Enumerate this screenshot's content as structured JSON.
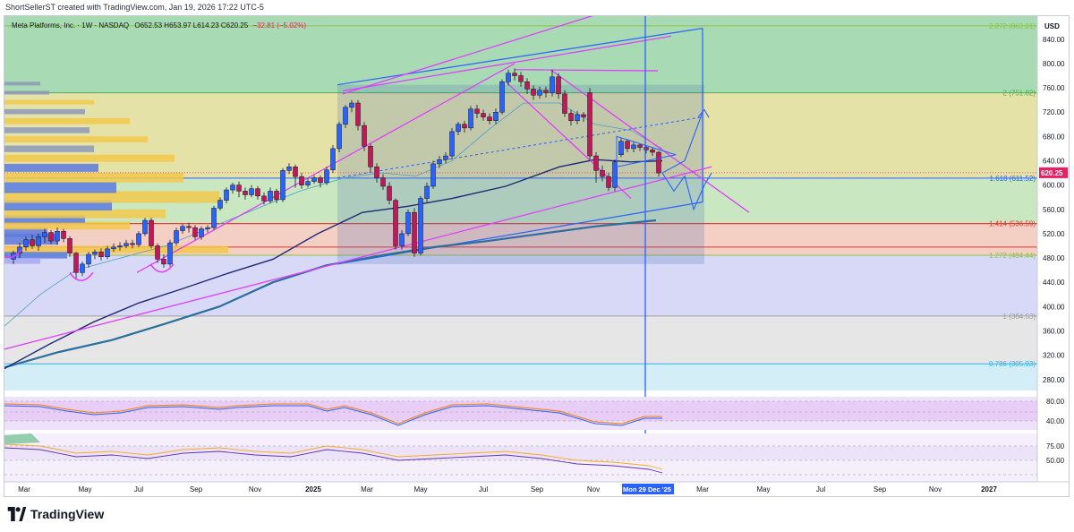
{
  "header": {
    "credit": "ShortSellerST created with TradingView.com, Jan 19, 2026 17:22 UTC-5",
    "symbol_line": "Meta Platforms, Inc. · 1W · NASDAQ",
    "ohlc": "O652.53 H653.97 L614.23 C620.25",
    "change": "−32.81 (−5.02%)"
  },
  "price_axis": {
    "currency": "USD",
    "current_price": "620.25",
    "ticks": [
      "840.00",
      "800.00",
      "760.00",
      "720.00",
      "680.00",
      "640.00",
      "600.00",
      "560.00",
      "520.00",
      "480.00",
      "440.00",
      "400.00",
      "360.00",
      "320.00",
      "280.00"
    ]
  },
  "fib_labels": [
    {
      "label": "2.272 (862.01)",
      "price": 862
    },
    {
      "label": "2 (751.82)",
      "price": 751.82
    },
    {
      "label": "1.618 (611.52)",
      "price": 611.52
    },
    {
      "label": "1.414 (536.59)",
      "price": 536.59
    },
    {
      "label": "1.272 (484.44)",
      "price": 484.44
    },
    {
      "label": "1 (384.53)",
      "price": 384.53
    },
    {
      "label": "0.786 (305.93)",
      "price": 305.93
    }
  ],
  "time_axis": {
    "ticks": [
      "Mar",
      "May",
      "Jul",
      "Sep",
      "Nov",
      "2025",
      "Mar",
      "May",
      "Jul",
      "Sep",
      "Nov",
      "Mon 29 Dec '25",
      "Mar",
      "May",
      "Jul",
      "Sep",
      "Nov",
      "2027"
    ],
    "cursor_label": "Mon 29 Dec '25"
  },
  "osc1_axis": [
    "80.00",
    "40.00"
  ],
  "osc2_axis": [
    "75.00",
    "50.00"
  ],
  "brand": "TradingView",
  "colors": {
    "up": "#2962ff",
    "down": "#c2185b",
    "trend": "#e040fb",
    "channel": "#2962ff",
    "ma_long": "#1e2a78",
    "ma_200": "#2b6f9e"
  },
  "chart_data": {
    "type": "candlestick",
    "interval": "1W",
    "symbol": "META",
    "ylim": [
      262,
      878
    ],
    "current_price": 620.25,
    "last_bar": {
      "open": 652.53,
      "high": 653.97,
      "low": 614.23,
      "close": 620.25
    },
    "candles_by_x_pos": [
      [
        10,
        478,
        488,
        470,
        492
      ],
      [
        17,
        488,
        498,
        480,
        505
      ],
      [
        24,
        498,
        510,
        492,
        515
      ],
      [
        31,
        510,
        500,
        495,
        518
      ],
      [
        38,
        500,
        515,
        492,
        520
      ],
      [
        45,
        515,
        522,
        505,
        528
      ],
      [
        52,
        522,
        508,
        503,
        526
      ],
      [
        59,
        508,
        524,
        502,
        530
      ],
      [
        66,
        524,
        512,
        506,
        528
      ],
      [
        73,
        512,
        488,
        482,
        516
      ],
      [
        80,
        488,
        456,
        444,
        490
      ],
      [
        87,
        456,
        470,
        450,
        474
      ],
      [
        94,
        470,
        486,
        464,
        490
      ],
      [
        101,
        486,
        490,
        478,
        494
      ],
      [
        108,
        490,
        482,
        476,
        496
      ],
      [
        115,
        482,
        495,
        478,
        500
      ],
      [
        122,
        495,
        498,
        490,
        504
      ],
      [
        129,
        498,
        500,
        492,
        506
      ],
      [
        136,
        500,
        504,
        496,
        510
      ],
      [
        143,
        504,
        502,
        496,
        510
      ],
      [
        150,
        502,
        520,
        498,
        524
      ],
      [
        157,
        520,
        542,
        516,
        546
      ],
      [
        164,
        542,
        500,
        496,
        546
      ],
      [
        171,
        500,
        478,
        472,
        504
      ],
      [
        178,
        478,
        470,
        464,
        486
      ],
      [
        185,
        470,
        505,
        466,
        510
      ],
      [
        192,
        505,
        525,
        500,
        530
      ],
      [
        199,
        525,
        532,
        520,
        536
      ],
      [
        206,
        532,
        530,
        522,
        538
      ],
      [
        213,
        530,
        515,
        510,
        534
      ],
      [
        220,
        515,
        528,
        510,
        532
      ],
      [
        227,
        528,
        530,
        522,
        534
      ],
      [
        234,
        530,
        562,
        526,
        566
      ],
      [
        241,
        562,
        575,
        558,
        580
      ],
      [
        248,
        575,
        592,
        570,
        596
      ],
      [
        255,
        592,
        600,
        586,
        604
      ],
      [
        262,
        600,
        590,
        580,
        606
      ],
      [
        269,
        590,
        584,
        576,
        596
      ],
      [
        276,
        584,
        594,
        580,
        600
      ],
      [
        283,
        594,
        582,
        576,
        598
      ],
      [
        290,
        582,
        574,
        568,
        588
      ],
      [
        297,
        574,
        590,
        570,
        596
      ],
      [
        304,
        590,
        576,
        570,
        594
      ],
      [
        311,
        576,
        624,
        572,
        628
      ],
      [
        318,
        624,
        630,
        618,
        636
      ],
      [
        325,
        630,
        614,
        596,
        634
      ],
      [
        332,
        614,
        600,
        594,
        620
      ],
      [
        339,
        600,
        606,
        596,
        612
      ],
      [
        346,
        606,
        612,
        602,
        616
      ],
      [
        353,
        612,
        604,
        596,
        616
      ],
      [
        360,
        604,
        625,
        600,
        630
      ],
      [
        367,
        625,
        660,
        620,
        666
      ],
      [
        374,
        660,
        700,
        654,
        704
      ],
      [
        381,
        700,
        728,
        694,
        732
      ],
      [
        388,
        728,
        735,
        720,
        740
      ],
      [
        395,
        735,
        698,
        690,
        740
      ],
      [
        402,
        698,
        664,
        656,
        704
      ],
      [
        409,
        664,
        630,
        622,
        668
      ],
      [
        416,
        630,
        612,
        604,
        636
      ],
      [
        423,
        612,
        598,
        592,
        618
      ],
      [
        430,
        598,
        575,
        568,
        605
      ],
      [
        437,
        575,
        500,
        494,
        578
      ],
      [
        444,
        500,
        520,
        494,
        526
      ],
      [
        451,
        520,
        555,
        516,
        560
      ],
      [
        458,
        555,
        488,
        482,
        562
      ],
      [
        465,
        488,
        578,
        484,
        582
      ],
      [
        472,
        578,
        598,
        572,
        604
      ],
      [
        479,
        598,
        635,
        594,
        640
      ],
      [
        486,
        635,
        642,
        628,
        648
      ],
      [
        493,
        642,
        648,
        636,
        654
      ],
      [
        500,
        648,
        688,
        642,
        694
      ],
      [
        507,
        688,
        700,
        682,
        704
      ],
      [
        514,
        700,
        694,
        686,
        706
      ],
      [
        521,
        694,
        725,
        690,
        730
      ],
      [
        528,
        725,
        718,
        710,
        732
      ],
      [
        535,
        718,
        712,
        706,
        724
      ],
      [
        542,
        712,
        706,
        700,
        718
      ],
      [
        549,
        706,
        720,
        700,
        726
      ],
      [
        556,
        720,
        770,
        716,
        774
      ],
      [
        563,
        770,
        784,
        764,
        790
      ],
      [
        570,
        784,
        780,
        772,
        792
      ],
      [
        577,
        780,
        770,
        762,
        786
      ],
      [
        584,
        770,
        758,
        750,
        776
      ],
      [
        591,
        758,
        748,
        740,
        764
      ],
      [
        598,
        748,
        756,
        742,
        762
      ],
      [
        605,
        756,
        752,
        744,
        762
      ],
      [
        612,
        752,
        778,
        746,
        790
      ],
      [
        619,
        778,
        750,
        742,
        784
      ],
      [
        626,
        750,
        718,
        712,
        756
      ],
      [
        633,
        718,
        706,
        698,
        724
      ],
      [
        640,
        706,
        716,
        700,
        722
      ],
      [
        647,
        716,
        712,
        704,
        720
      ],
      [
        654,
        752,
        648,
        640,
        760
      ],
      [
        661,
        648,
        624,
        604,
        654
      ],
      [
        668,
        624,
        614,
        606,
        632
      ],
      [
        675,
        614,
        596,
        590,
        620
      ],
      [
        682,
        596,
        638,
        590,
        642
      ],
      [
        689,
        650,
        672,
        646,
        678
      ],
      [
        696,
        672,
        660,
        654,
        676
      ],
      [
        703,
        660,
        666,
        654,
        672
      ],
      [
        710,
        666,
        662,
        656,
        668
      ],
      [
        717,
        662,
        658,
        652,
        666
      ],
      [
        724,
        658,
        654,
        648,
        662
      ],
      [
        731,
        654,
        620,
        614,
        656
      ]
    ],
    "horizontal_levels": [
      {
        "price": 536.59,
        "color": "#e53935"
      },
      {
        "price": 498,
        "color": "#e53935"
      }
    ]
  }
}
